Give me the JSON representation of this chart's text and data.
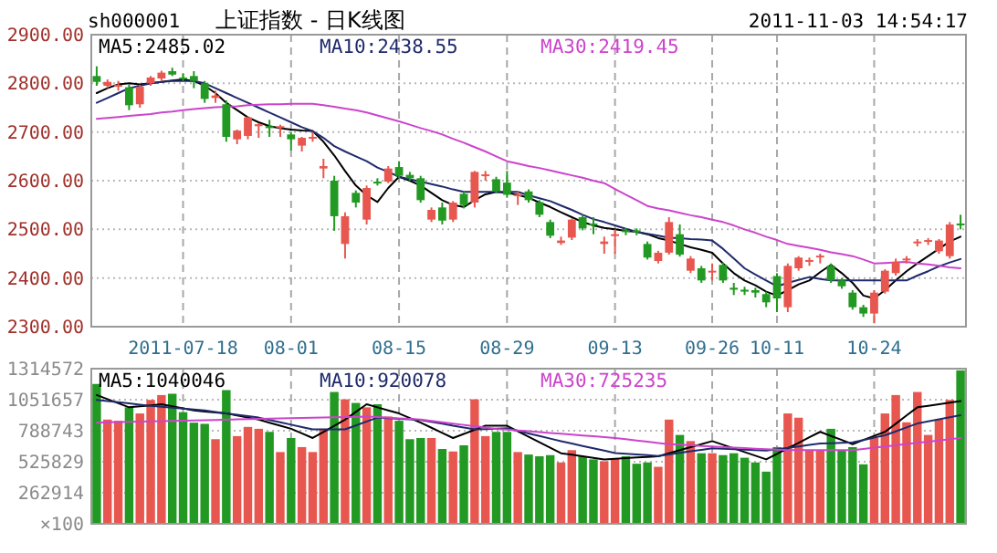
{
  "chart_data": [
    {
      "type": "candlestick",
      "title": "上证指数 - 日K线图",
      "annotations": [
        "sh000001",
        "2011-11-03 14:54:17"
      ],
      "categories": [
        null,
        null,
        null,
        null,
        null,
        null,
        null,
        null,
        "2011-07-18",
        null,
        null,
        null,
        null,
        null,
        null,
        null,
        null,
        null,
        "08-01",
        null,
        null,
        null,
        null,
        null,
        null,
        null,
        null,
        null,
        "08-15",
        null,
        null,
        null,
        null,
        null,
        null,
        null,
        null,
        null,
        "08-29",
        null,
        null,
        null,
        null,
        null,
        null,
        null,
        null,
        null,
        "09-13",
        null,
        null,
        null,
        null,
        null,
        null,
        null,
        null,
        "09-26",
        null,
        null,
        null,
        null,
        null,
        "10-11",
        null,
        null,
        null,
        null,
        null,
        null,
        null,
        null,
        "10-24",
        null,
        null,
        null,
        null,
        null,
        null,
        null,
        null
      ],
      "ohlc": [
        [
          2815,
          2835,
          2795,
          2803
        ],
        [
          2795,
          2808,
          2790,
          2803
        ],
        [
          2793,
          2805,
          2785,
          2797
        ],
        [
          2792,
          2797,
          2745,
          2755
        ],
        [
          2757,
          2797,
          2750,
          2793
        ],
        [
          2800,
          2815,
          2795,
          2812
        ],
        [
          2810,
          2826,
          2805,
          2822
        ],
        [
          2825,
          2832,
          2815,
          2818
        ],
        [
          2812,
          2820,
          2805,
          2810
        ],
        [
          2815,
          2825,
          2790,
          2805
        ],
        [
          2800,
          2805,
          2760,
          2768
        ],
        [
          2770,
          2785,
          2760,
          2775
        ],
        [
          2757,
          2765,
          2680,
          2690
        ],
        [
          2685,
          2705,
          2675,
          2703
        ],
        [
          2692,
          2732,
          2685,
          2730
        ],
        [
          2712,
          2718,
          2688,
          2716
        ],
        [
          2712,
          2725,
          2690,
          2708
        ],
        [
          2708,
          2715,
          2690,
          2712
        ],
        [
          2695,
          2700,
          2662,
          2685
        ],
        [
          2672,
          2690,
          2660,
          2688
        ],
        [
          2688,
          2700,
          2680,
          2690
        ],
        [
          2625,
          2645,
          2605,
          2630
        ],
        [
          2600,
          2610,
          2497,
          2527
        ],
        [
          2470,
          2535,
          2440,
          2527
        ],
        [
          2575,
          2580,
          2545,
          2555
        ],
        [
          2520,
          2590,
          2510,
          2585
        ],
        [
          2598,
          2605,
          2590,
          2595
        ],
        [
          2598,
          2630,
          2595,
          2625
        ],
        [
          2628,
          2640,
          2605,
          2610
        ],
        [
          2612,
          2618,
          2600,
          2605
        ],
        [
          2605,
          2610,
          2555,
          2560
        ],
        [
          2520,
          2545,
          2515,
          2540
        ],
        [
          2545,
          2555,
          2510,
          2518
        ],
        [
          2520,
          2558,
          2515,
          2555
        ],
        [
          2573,
          2578,
          2543,
          2550
        ],
        [
          2555,
          2620,
          2545,
          2618
        ],
        [
          2610,
          2620,
          2600,
          2613
        ],
        [
          2603,
          2608,
          2575,
          2578
        ],
        [
          2596,
          2620,
          2565,
          2571
        ],
        [
          2570,
          2578,
          2550,
          2572
        ],
        [
          2578,
          2582,
          2555,
          2560
        ],
        [
          2556,
          2560,
          2525,
          2530
        ],
        [
          2515,
          2520,
          2482,
          2487
        ],
        [
          2472,
          2485,
          2468,
          2477
        ],
        [
          2483,
          2522,
          2478,
          2520
        ],
        [
          2525,
          2530,
          2498,
          2502
        ],
        [
          2512,
          2525,
          2490,
          2508
        ],
        [
          2470,
          2485,
          2450,
          2475
        ],
        [
          2487,
          2500,
          2450,
          2490
        ],
        [
          2498,
          2503,
          2488,
          2495
        ],
        [
          2498,
          2502,
          2488,
          2494
        ],
        [
          2470,
          2475,
          2438,
          2442
        ],
        [
          2435,
          2456,
          2430,
          2452
        ],
        [
          2452,
          2525,
          2448,
          2515
        ],
        [
          2490,
          2510,
          2444,
          2448
        ],
        [
          2415,
          2445,
          2410,
          2440
        ],
        [
          2420,
          2425,
          2390,
          2395
        ],
        [
          2413,
          2430,
          2395,
          2415
        ],
        [
          2427,
          2432,
          2390,
          2395
        ],
        [
          2380,
          2390,
          2365,
          2376
        ],
        [
          2376,
          2382,
          2365,
          2372
        ],
        [
          2375,
          2380,
          2360,
          2370
        ],
        [
          2367,
          2372,
          2340,
          2350
        ],
        [
          2404,
          2410,
          2330,
          2358
        ],
        [
          2340,
          2430,
          2330,
          2425
        ],
        [
          2420,
          2445,
          2415,
          2442
        ],
        [
          2435,
          2442,
          2425,
          2437
        ],
        [
          2443,
          2450,
          2430,
          2446
        ],
        [
          2425,
          2430,
          2390,
          2395
        ],
        [
          2395,
          2400,
          2378,
          2383
        ],
        [
          2370,
          2375,
          2335,
          2340
        ],
        [
          2340,
          2345,
          2320,
          2327
        ],
        [
          2327,
          2375,
          2307,
          2370
        ],
        [
          2372,
          2418,
          2368,
          2415
        ],
        [
          2410,
          2440,
          2405,
          2433
        ],
        [
          2437,
          2445,
          2430,
          2440
        ],
        [
          2472,
          2480,
          2465,
          2475
        ],
        [
          2475,
          2482,
          2468,
          2478
        ],
        [
          2455,
          2480,
          2450,
          2477
        ],
        [
          2445,
          2515,
          2440,
          2510
        ],
        [
          2512,
          2530,
          2500,
          2509
        ]
      ],
      "colors": [
        "#229922",
        "#e8574f",
        "#e8574f",
        "#229922",
        "#e8574f",
        "#e8574f",
        "#e8574f",
        "#229922",
        "#229922",
        "#229922",
        "#229922",
        "#e8574f",
        "#229922",
        "#e8574f",
        "#e8574f",
        "#e8574f",
        "#229922",
        "#e8574f",
        "#229922",
        "#e8574f",
        "#e8574f",
        "#e8574f",
        "#229922",
        "#e8574f",
        "#229922",
        "#e8574f",
        "#229922",
        "#e8574f",
        "#229922",
        "#229922",
        "#229922",
        "#e8574f",
        "#229922",
        "#e8574f",
        "#229922",
        "#e8574f",
        "#e8574f",
        "#229922",
        "#229922",
        "#e8574f",
        "#229922",
        "#229922",
        "#229922",
        "#e8574f",
        "#e8574f",
        "#229922",
        "#229922",
        "#e8574f",
        "#e8574f",
        "#229922",
        "#229922",
        "#229922",
        "#e8574f",
        "#e8574f",
        "#229922",
        "#e8574f",
        "#229922",
        "#e8574f",
        "#229922",
        "#229922",
        "#229922",
        "#229922",
        "#229922",
        "#229922",
        "#e8574f",
        "#e8574f",
        "#e8574f",
        "#e8574f",
        "#229922",
        "#229922",
        "#229922",
        "#229922",
        "#e8574f",
        "#e8574f",
        "#e8574f",
        "#e8574f",
        "#e8574f",
        "#e8574f",
        "#e8574f",
        "#e8574f",
        "#229922"
      ],
      "series": [
        {
          "type": "line",
          "name": "MA5:2485.02",
          "color": "#000000",
          "values": [
            2780,
            2790,
            2798,
            2800,
            2798,
            2800,
            2803,
            2806,
            2808,
            2805,
            2795,
            2780,
            2760,
            2745,
            2730,
            2720,
            2712,
            2708,
            2705,
            2703,
            2702,
            2680,
            2652,
            2620,
            2590,
            2570,
            2556,
            2585,
            2608,
            2600,
            2590,
            2575,
            2560,
            2550,
            2546,
            2560,
            2572,
            2577,
            2575,
            2571,
            2565,
            2555,
            2546,
            2535,
            2525,
            2515,
            2508,
            2503,
            2500,
            2497,
            2495,
            2490,
            2482,
            2477,
            2470,
            2463,
            2458,
            2452,
            2430,
            2410,
            2395,
            2385,
            2372,
            2364,
            2375,
            2387,
            2395,
            2412,
            2427,
            2410,
            2390,
            2364,
            2358,
            2375,
            2395,
            2414,
            2430,
            2445,
            2460,
            2475,
            2485
          ]
        },
        {
          "type": "line",
          "name": "MA10:2438.55",
          "color": "#1f2a6b",
          "values": [
            2760,
            2770,
            2780,
            2790,
            2795,
            2800,
            2803,
            2805,
            2805,
            2805,
            2800,
            2790,
            2780,
            2770,
            2760,
            2750,
            2740,
            2730,
            2720,
            2710,
            2702,
            2688,
            2671,
            2660,
            2650,
            2640,
            2627,
            2618,
            2608,
            2603,
            2598,
            2593,
            2588,
            2582,
            2577,
            2577,
            2577,
            2577,
            2577,
            2577,
            2570,
            2564,
            2558,
            2549,
            2540,
            2530,
            2521,
            2515,
            2508,
            2501,
            2495,
            2491,
            2487,
            2483,
            2482,
            2480,
            2479,
            2477,
            2460,
            2440,
            2420,
            2407,
            2395,
            2383,
            2390,
            2396,
            2402,
            2398,
            2395,
            2395,
            2395,
            2395,
            2395,
            2395,
            2395,
            2395,
            2405,
            2414,
            2424,
            2432,
            2439
          ]
        },
        {
          "type": "line",
          "name": "MA30:2419.45",
          "color": "#cc44cc",
          "values": [
            2727,
            2729,
            2731,
            2733,
            2735,
            2737,
            2740,
            2742,
            2745,
            2747,
            2749,
            2751,
            2752,
            2753,
            2755,
            2756,
            2757,
            2757,
            2758,
            2758,
            2758,
            2755,
            2752,
            2748,
            2745,
            2740,
            2734,
            2728,
            2722,
            2715,
            2708,
            2702,
            2695,
            2686,
            2678,
            2669,
            2660,
            2650,
            2640,
            2635,
            2630,
            2626,
            2621,
            2616,
            2611,
            2606,
            2600,
            2595,
            2583,
            2571,
            2560,
            2548,
            2543,
            2539,
            2534,
            2529,
            2525,
            2520,
            2515,
            2508,
            2500,
            2493,
            2485,
            2478,
            2470,
            2466,
            2462,
            2458,
            2453,
            2449,
            2445,
            2438,
            2430,
            2431,
            2432,
            2433,
            2430,
            2428,
            2425,
            2422,
            2420
          ]
        }
      ],
      "ylim": [
        2300,
        2900
      ],
      "yticks": [
        {
          "value": 2300,
          "label": "2300.00"
        },
        {
          "value": 2400,
          "label": "2400.00"
        },
        {
          "value": 2500,
          "label": "2500.00"
        },
        {
          "value": 2600,
          "label": "2600.00"
        },
        {
          "value": 2700,
          "label": "2700.00"
        },
        {
          "value": 2800,
          "label": "2800.00"
        },
        {
          "value": 2900,
          "label": "2900.00"
        }
      ],
      "grid": true,
      "legend": "top"
    },
    {
      "type": "bar",
      "categories": [
        null,
        null,
        null,
        null,
        null,
        null,
        null,
        null,
        null,
        null,
        null,
        null,
        null,
        null,
        null,
        null,
        null,
        null,
        null,
        null,
        null,
        null,
        null,
        null,
        null,
        null,
        null,
        null,
        null,
        null,
        null,
        null,
        null,
        null,
        null,
        null,
        null,
        null,
        null,
        null,
        null,
        null,
        null,
        null,
        null,
        null,
        null,
        null,
        null,
        null,
        null,
        null,
        null,
        null,
        null,
        null,
        null,
        null,
        null,
        null,
        null,
        null,
        null,
        null,
        null,
        null,
        null,
        null,
        null,
        null,
        null,
        null,
        null,
        null,
        null,
        null,
        null,
        null,
        null,
        null,
        null
      ],
      "values": [
        1185000,
        883000,
        873000,
        987000,
        935000,
        1050000,
        1091000,
        1102000,
        946000,
        857000,
        847000,
        717000,
        1133000,
        743000,
        821000,
        805000,
        779000,
        608000,
        727000,
        650000,
        608000,
        805000,
        1117000,
        1055000,
        1024000,
        987000,
        1013000,
        909000,
        873000,
        717000,
        727000,
        727000,
        634000,
        613000,
        665000,
        1055000,
        743000,
        779000,
        779000,
        608000,
        587000,
        572000,
        582000,
        520000,
        624000,
        572000,
        546000,
        530000,
        556000,
        572000,
        509000,
        520000,
        483000,
        883000,
        753000,
        701000,
        598000,
        598000,
        582000,
        598000,
        560000,
        520000,
        442000,
        650000,
        935000,
        899000,
        624000,
        624000,
        805000,
        624000,
        650000,
        504000,
        727000,
        935000,
        1091000,
        860000,
        1117000,
        753000,
        883000,
        1050000,
        1300000
      ],
      "colors": [
        "#229922",
        "#e8574f",
        "#e8574f",
        "#229922",
        "#e8574f",
        "#e8574f",
        "#e8574f",
        "#229922",
        "#229922",
        "#229922",
        "#229922",
        "#e8574f",
        "#229922",
        "#e8574f",
        "#e8574f",
        "#e8574f",
        "#229922",
        "#e8574f",
        "#229922",
        "#e8574f",
        "#e8574f",
        "#e8574f",
        "#229922",
        "#e8574f",
        "#229922",
        "#e8574f",
        "#229922",
        "#e8574f",
        "#229922",
        "#229922",
        "#229922",
        "#e8574f",
        "#229922",
        "#e8574f",
        "#229922",
        "#e8574f",
        "#e8574f",
        "#229922",
        "#229922",
        "#e8574f",
        "#229922",
        "#229922",
        "#229922",
        "#e8574f",
        "#e8574f",
        "#229922",
        "#229922",
        "#e8574f",
        "#e8574f",
        "#229922",
        "#229922",
        "#229922",
        "#e8574f",
        "#e8574f",
        "#229922",
        "#e8574f",
        "#229922",
        "#e8574f",
        "#229922",
        "#229922",
        "#229922",
        "#229922",
        "#229922",
        "#229922",
        "#e8574f",
        "#e8574f",
        "#e8574f",
        "#e8574f",
        "#229922",
        "#229922",
        "#229922",
        "#229922",
        "#e8574f",
        "#e8574f",
        "#e8574f",
        "#e8574f",
        "#e8574f",
        "#e8574f",
        "#e8574f",
        "#e8574f",
        "#229922"
      ],
      "series": [
        {
          "type": "line",
          "name": "MA5:1040046",
          "color": "#000000",
          "values": [
            1091000,
            1056000,
            1022000,
            987000,
            996000,
            1004000,
            1013000,
            996000,
            978000,
            961000,
            952000,
            944000,
            935000,
            918000,
            900000,
            883000,
            857000,
            831000,
            805000,
            766000,
            727000,
            779000,
            831000,
            883000,
            948000,
            1013000,
            987000,
            961000,
            935000,
            896000,
            857000,
            814000,
            770000,
            727000,
            762000,
            796000,
            831000,
            831000,
            831000,
            784000,
            738000,
            691000,
            645000,
            598000,
            585000,
            572000,
            559000,
            546000,
            551000,
            557000,
            562000,
            567000,
            572000,
            598000,
            624000,
            649000,
            675000,
            701000,
            670000,
            639000,
            608000,
            577000,
            546000,
            593000,
            640000,
            686000,
            733000,
            779000,
            744000,
            710000,
            675000,
            710000,
            745000,
            779000,
            848000,
            918000,
            987000,
            1000000,
            1013000,
            1026000,
            1040000
          ]
        },
        {
          "type": "line",
          "name": "MA10:920078",
          "color": "#1f2a6b",
          "values": [
            1050000,
            1040000,
            1030000,
            1020000,
            1010000,
            1000000,
            992000,
            984000,
            976000,
            968000,
            960000,
            948000,
            936000,
            924000,
            912000,
            900000,
            880000,
            860000,
            840000,
            820000,
            800000,
            800000,
            800000,
            800000,
            833000,
            867000,
            900000,
            895000,
            890000,
            885000,
            880000,
            864000,
            848000,
            832000,
            816000,
            800000,
            803000,
            807000,
            810000,
            788000,
            766000,
            744000,
            722000,
            700000,
            680000,
            660000,
            640000,
            620000,
            600000,
            594000,
            588000,
            581000,
            575000,
            588000,
            601000,
            614000,
            627000,
            640000,
            636000,
            632000,
            628000,
            624000,
            620000,
            632000,
            644000,
            656000,
            668000,
            680000,
            683000,
            687000,
            690000,
            710000,
            730000,
            750000,
            783000,
            817000,
            850000,
            868000,
            885000,
            902000,
            920000
          ]
        },
        {
          "type": "line",
          "name": "MA30:725235",
          "color": "#cc44cc",
          "values": [
            857000,
            860000,
            862000,
            864000,
            866000,
            868000,
            870000,
            872000,
            874000,
            876000,
            878000,
            880000,
            883000,
            885000,
            887000,
            889000,
            891000,
            893000,
            895000,
            897000,
            899000,
            901000,
            903000,
            905000,
            907000,
            909000,
            904000,
            899000,
            894000,
            889000,
            883000,
            872000,
            860000,
            849000,
            838000,
            827000,
            816000,
            805000,
            798000,
            791000,
            784000,
            777000,
            770000,
            763000,
            756000,
            749000,
            742000,
            735000,
            727000,
            717000,
            706000,
            696000,
            685000,
            675000,
            670000,
            665000,
            660000,
            655000,
            650000,
            646000,
            642000,
            637000,
            633000,
            628000,
            624000,
            624000,
            624000,
            624000,
            624000,
            624000,
            624000,
            634000,
            645000,
            655000,
            665000,
            676000,
            686000,
            696000,
            706000,
            717000,
            727000
          ]
        }
      ],
      "ylim": [
        0,
        1314572
      ],
      "ylabel": "×100",
      "yticks": [
        {
          "value": 0,
          "label": null
        },
        262914,
        525829,
        788743,
        1051657,
        1314572
      ],
      "grid": true,
      "legend": "top",
      "tick_labels": "y"
    }
  ]
}
